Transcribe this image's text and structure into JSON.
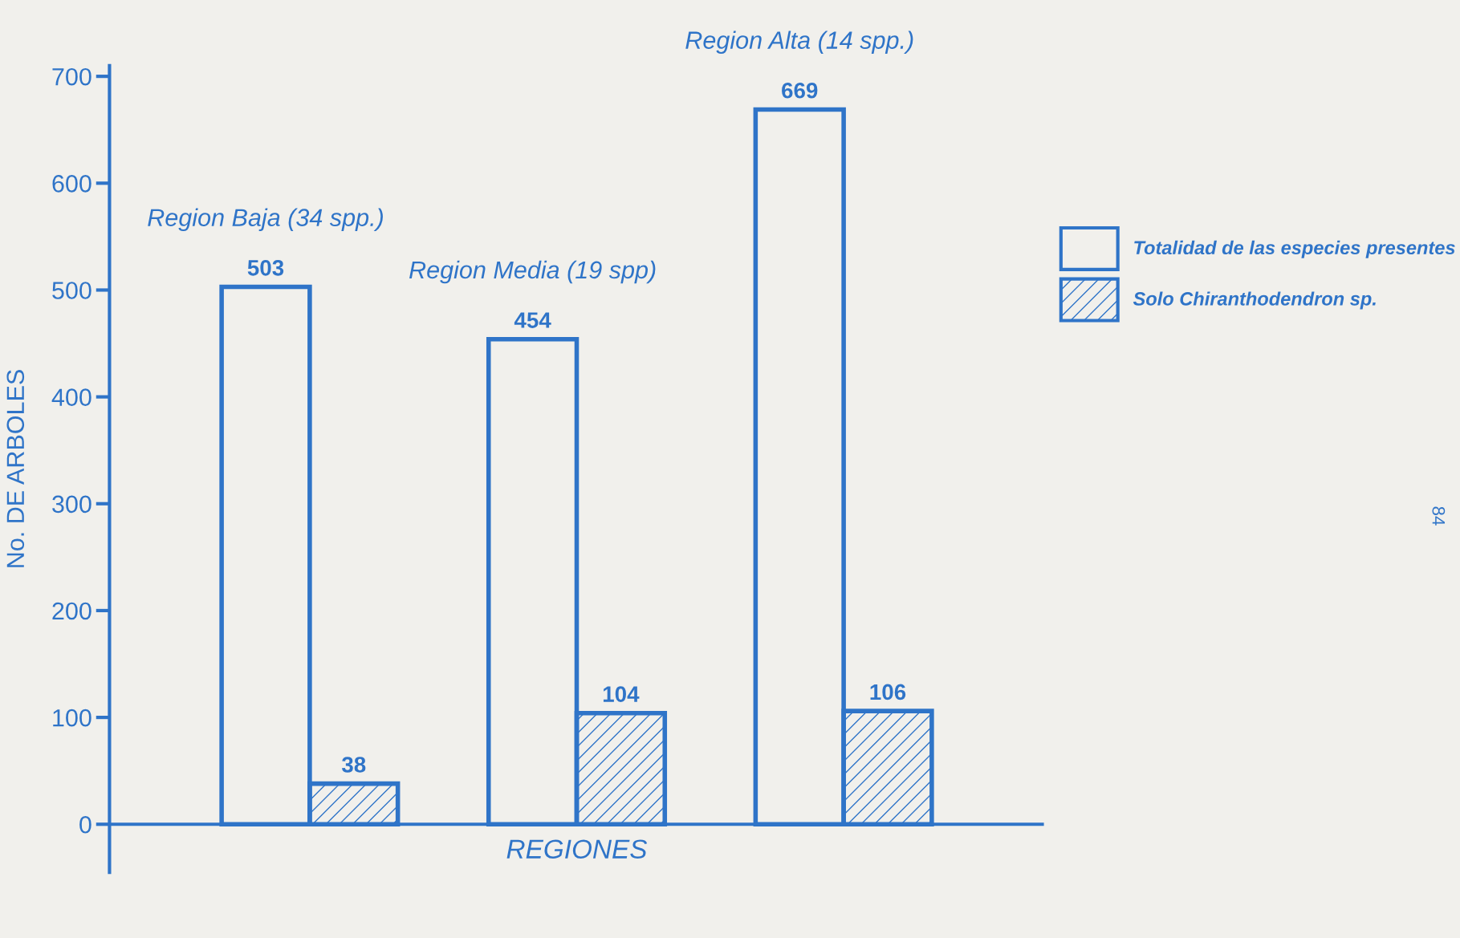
{
  "chart_data": {
    "type": "bar",
    "categories": [
      "Region Baja (34 spp.)",
      "Region Media (19 spp)",
      "Region Alta (14 spp.)"
    ],
    "series": [
      {
        "name": "Totalidad de las especies presentes",
        "color": "#2f74c8",
        "values": [
          503,
          454,
          669
        ]
      },
      {
        "name": "Solo Chiranthodendron sp.",
        "color": "#2f74c8",
        "values": [
          38,
          104,
          106
        ]
      }
    ],
    "ylabel": "No. DE ARBOLES",
    "xlabel": "REGIONES",
    "ylim": [
      -45,
      710
    ],
    "yticks": [
      0,
      100,
      200,
      300,
      400,
      500,
      600,
      700
    ],
    "ref_lines": [
      {
        "axis": "y",
        "value": 0
      }
    ],
    "data_labels": true,
    "legend": "top right",
    "grid": false,
    "annotations": [
      "84"
    ]
  }
}
